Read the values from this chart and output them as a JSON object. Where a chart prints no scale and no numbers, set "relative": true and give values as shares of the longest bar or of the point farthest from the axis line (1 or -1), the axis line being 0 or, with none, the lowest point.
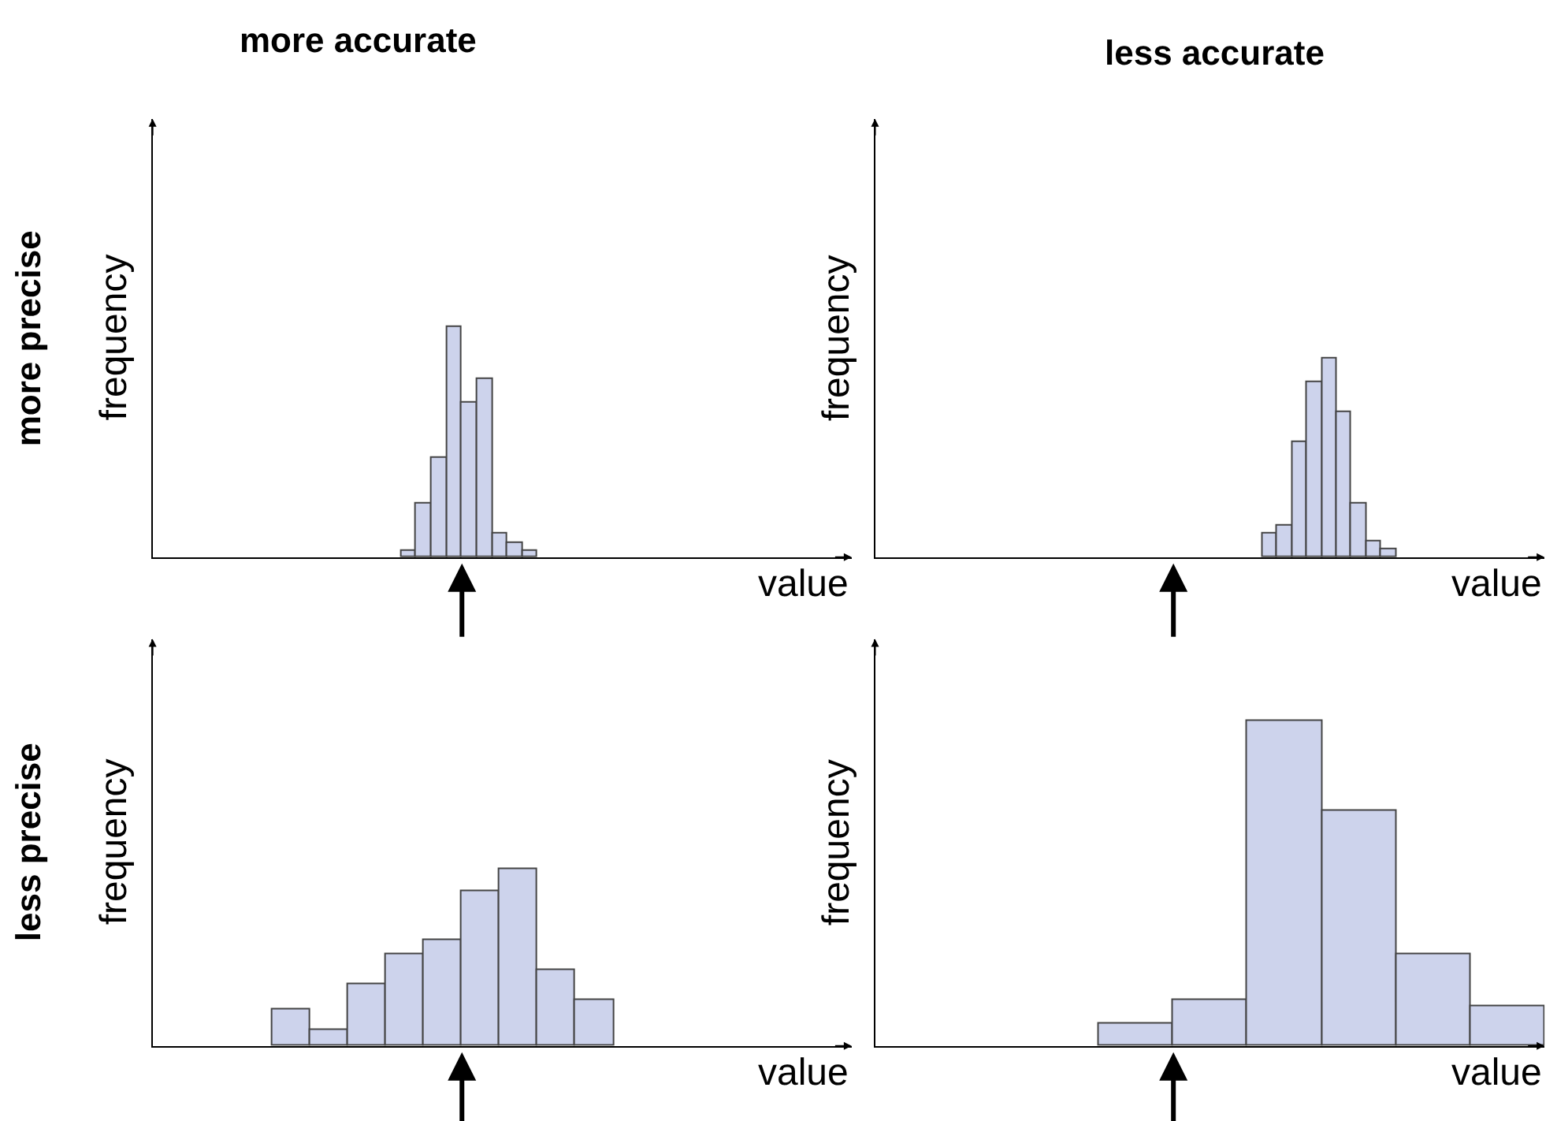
{
  "chart_data": [
    {
      "type": "bar",
      "title": "more accurate",
      "annotations": [
        "more precise"
      ],
      "xlabel": "value",
      "ylabel": "frequency",
      "relative": true,
      "color": "#cdd3ec",
      "categories": [
        null,
        null,
        null,
        null,
        null,
        null,
        null,
        null,
        null
      ],
      "values": [
        0.03,
        0.23,
        0.43,
        1,
        0.67,
        0.77,
        0.1,
        0.06,
        0.03
      ]
    },
    {
      "type": "bar",
      "title": "less accurate",
      "xlabel": "value",
      "ylabel": "frequency",
      "relative": true,
      "color": "#cdd3ec",
      "categories": [
        null,
        null,
        null,
        null,
        null,
        null,
        null,
        null,
        null
      ],
      "values": [
        0.12,
        0.16,
        0.58,
        0.88,
        1,
        0.73,
        0.27,
        0.08,
        0.04
      ]
    },
    {
      "type": "bar",
      "annotations": [
        "less precise"
      ],
      "xlabel": "value",
      "ylabel": "frequency",
      "relative": true,
      "color": "#cdd3ec",
      "categories": [
        null,
        null,
        null,
        null,
        null,
        null,
        null,
        null,
        null
      ],
      "values": [
        0.21,
        0.09,
        0.35,
        0.52,
        0.6,
        0.87,
        1,
        0.43,
        0.26
      ]
    },
    {
      "type": "bar",
      "xlabel": "value",
      "ylabel": "frequency",
      "relative": true,
      "color": "#cdd3ec",
      "categories": [
        null,
        null,
        null,
        null,
        null,
        null
      ],
      "values": [
        0.07,
        0.14,
        1,
        0.72,
        0.28,
        0.12
      ]
    }
  ]
}
